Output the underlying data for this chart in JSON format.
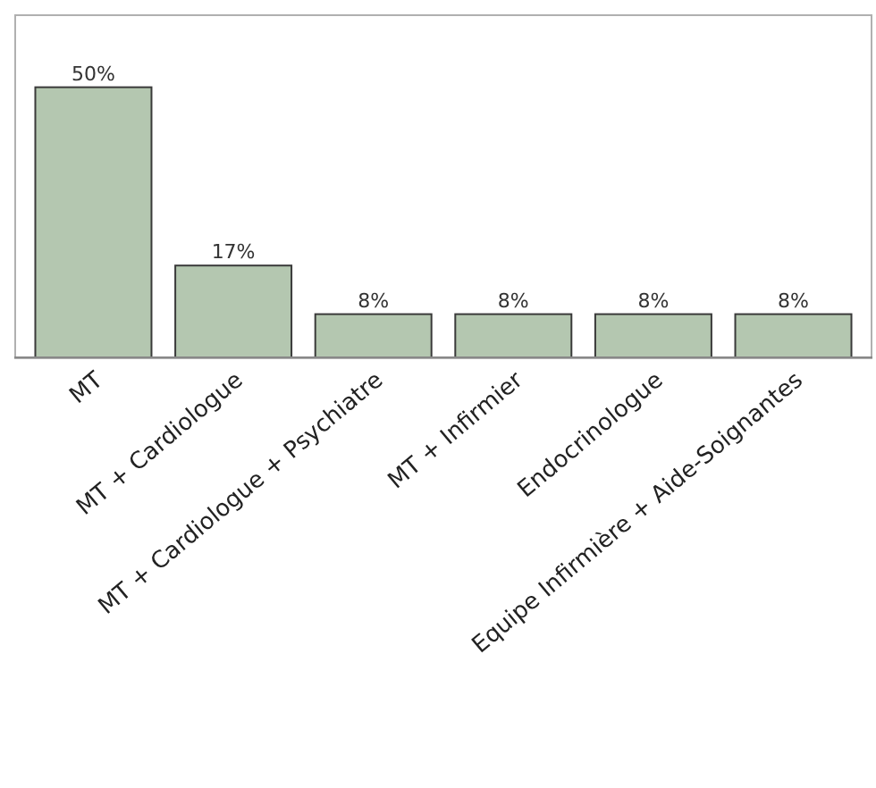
{
  "chart_data": {
    "type": "bar",
    "categories": [
      "MT",
      "MT + Cardiologue",
      "MT + Cardiologue + Psychiatre",
      "MT + Infirmier",
      "Endocrinologue",
      "Equipe Infirmière + Aide-Soignantes"
    ],
    "values": [
      50,
      17,
      8,
      8,
      8,
      8
    ],
    "value_labels": [
      "50%",
      "17%",
      "8%",
      "8%",
      "8%",
      "8%"
    ],
    "color": "#b4c7b0"
  }
}
